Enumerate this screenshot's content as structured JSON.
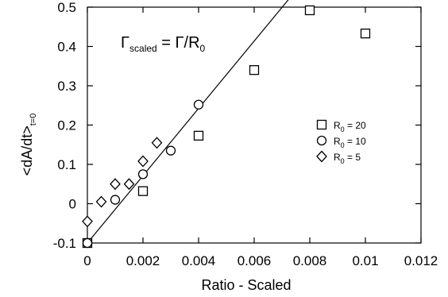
{
  "chart_data": {
    "type": "scatter",
    "title": "",
    "xlabel": "Ratio - Scaled",
    "ylabel_main": "<dA/dt>",
    "ylabel_sub": "t=0",
    "xlim": [
      0,
      0.012
    ],
    "ylim": [
      -0.1,
      0.5
    ],
    "xticks": [
      0,
      0.002,
      0.004,
      0.006,
      0.008,
      0.01,
      0.012
    ],
    "xtick_labels": [
      "0",
      "0.002",
      "0.004",
      "0.006",
      "0.008",
      "0.01",
      "0.012"
    ],
    "yticks": [
      -0.1,
      0,
      0.1,
      0.2,
      0.3,
      0.4,
      0.5
    ],
    "ytick_labels": [
      "-0.1",
      "0",
      "0.1",
      "0.2",
      "0.3",
      "0.4",
      "0.5"
    ],
    "grid": false,
    "legend_position": "right",
    "annotation": {
      "gamma": "Γ",
      "sub": "scaled",
      "eq": " = Γ/R",
      "eq_sub": "0"
    },
    "series": [
      {
        "name": "R0 = 20",
        "legend_main": "R",
        "legend_sub": "0",
        "legend_rest": " = 20",
        "marker": "square",
        "x": [
          0,
          0.002,
          0.004,
          0.006,
          0.008,
          0.01
        ],
        "y": [
          -0.1,
          0.032,
          0.173,
          0.34,
          0.492,
          0.433
        ]
      },
      {
        "name": "R0 = 10",
        "legend_main": "R",
        "legend_sub": "0",
        "legend_rest": " = 10",
        "marker": "circle",
        "x": [
          0,
          0.001,
          0.002,
          0.003,
          0.004
        ],
        "y": [
          -0.1,
          0.01,
          0.075,
          0.135,
          0.252
        ]
      },
      {
        "name": "R0 = 5",
        "legend_main": "R",
        "legend_sub": "0",
        "legend_rest": " = 5",
        "marker": "diamond",
        "x": [
          0,
          0.0005,
          0.001,
          0.0015,
          0.002,
          0.0025
        ],
        "y": [
          -0.045,
          0.005,
          0.05,
          0.05,
          0.108,
          0.155
        ]
      }
    ],
    "fit_line": {
      "type": "line",
      "x": [
        0,
        0.00765
      ],
      "y": [
        -0.1,
        0.555
      ]
    }
  }
}
